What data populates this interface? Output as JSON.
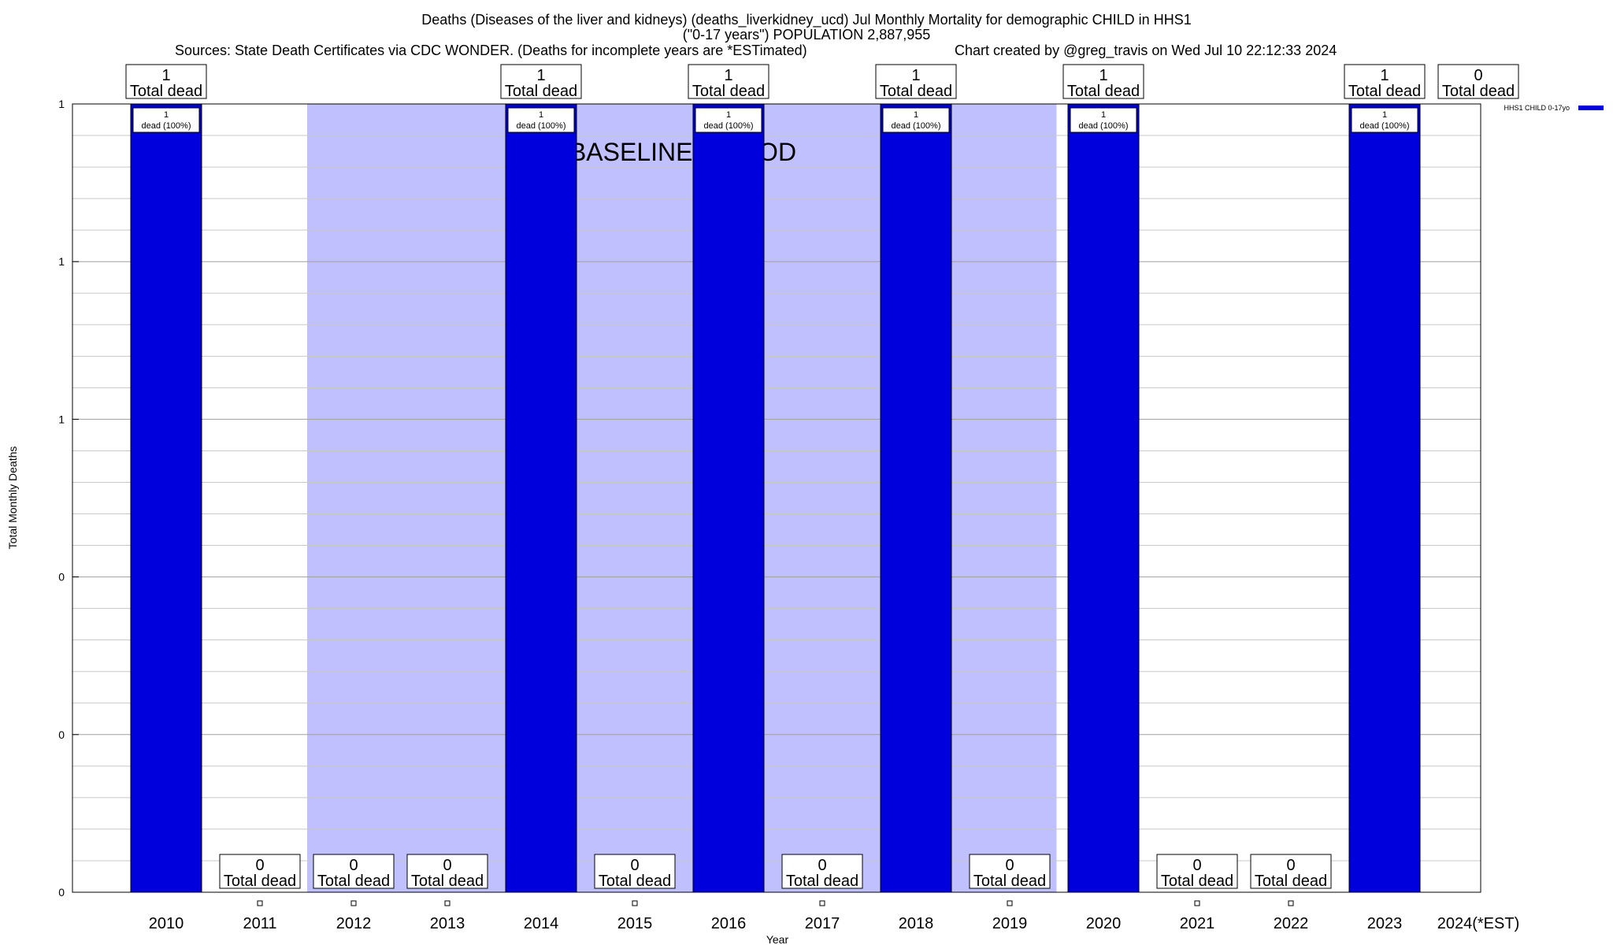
{
  "header": {
    "title_line1": "Deaths (Diseases of the liver and kidneys) (deaths_liverkidney_ucd) Jul Monthly Mortality for demographic CHILD in HHS1",
    "title_line2": "(\"0-17 years\") POPULATION 2,887,955",
    "sources": "Sources: State Death Certificates via CDC WONDER. (Deaths for incomplete years are *ESTimated)",
    "credit": "Chart created by @greg_travis on Wed Jul 10 22:12:33 2024"
  },
  "chart_data": {
    "type": "bar",
    "xlabel": "Year",
    "ylabel": "Total Monthly Deaths",
    "ylim": [
      0,
      1
    ],
    "ytick_labels": [
      "0",
      "0",
      "0",
      "1",
      "1",
      "1"
    ],
    "categories": [
      "2010",
      "2011",
      "2012",
      "2013",
      "2014",
      "2015",
      "2016",
      "2017",
      "2018",
      "2019",
      "2020",
      "2021",
      "2022",
      "2023",
      "2024(*EST)"
    ],
    "series": [
      {
        "name": "HHS1 CHILD 0-17yo",
        "color": "#0000dd",
        "values": [
          1,
          0,
          0,
          0,
          1,
          0,
          1,
          0,
          1,
          0,
          1,
          0,
          0,
          1,
          0
        ]
      }
    ],
    "top_labels": [
      {
        "category": "2010",
        "value": "1",
        "text": "Total dead"
      },
      {
        "category": "2014",
        "value": "1",
        "text": "Total dead"
      },
      {
        "category": "2016",
        "value": "1",
        "text": "Total dead"
      },
      {
        "category": "2018",
        "value": "1",
        "text": "Total dead"
      },
      {
        "category": "2020",
        "value": "1",
        "text": "Total dead"
      },
      {
        "category": "2023",
        "value": "1",
        "text": "Total dead"
      },
      {
        "category": "2024(*EST)",
        "value": "0",
        "text": "Total dead"
      }
    ],
    "bottom_labels": [
      {
        "category": "2011",
        "value": "0",
        "text": "Total dead"
      },
      {
        "category": "2012",
        "value": "0",
        "text": "Total dead"
      },
      {
        "category": "2013",
        "value": "0",
        "text": "Total dead"
      },
      {
        "category": "2015",
        "value": "0",
        "text": "Total dead"
      },
      {
        "category": "2017",
        "value": "0",
        "text": "Total dead"
      },
      {
        "category": "2019",
        "value": "0",
        "text": "Total dead"
      },
      {
        "category": "2021",
        "value": "0",
        "text": "Total dead"
      },
      {
        "category": "2022",
        "value": "0",
        "text": "Total dead"
      }
    ],
    "bar_inner_labels": {
      "count": "1",
      "text": "dead (100%)"
    },
    "baseline_period": {
      "label": "BASELINE PERIOD",
      "start": "2012",
      "end": "2019",
      "color": "#c0c0ff"
    },
    "legend": {
      "label": "HHS1 CHILD 0-17yo",
      "position": "top-right"
    },
    "grid": true
  }
}
